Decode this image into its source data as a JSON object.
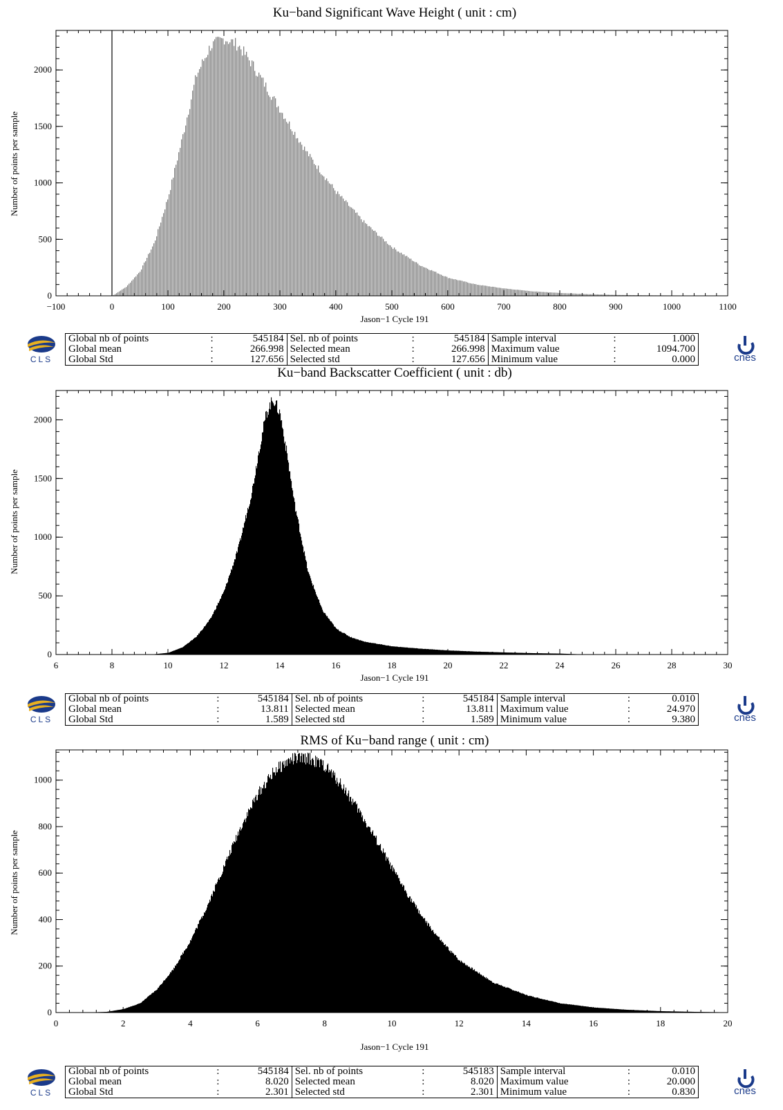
{
  "panels": [
    {
      "title": "Ku−band Significant Wave Height  ( unit : cm)",
      "xlabel": "Jason−1 Cycle 191",
      "ylabel": "Number of points per sample",
      "stats": {
        "global_nb_label": "Global nb of points",
        "global_nb": "545184",
        "global_mean_label": "Global mean",
        "global_mean": "266.998",
        "global_std_label": "Global Std",
        "global_std": "127.656",
        "sel_nb_label": "Sel. nb of points",
        "sel_nb": "545184",
        "sel_mean_label": "Selected mean",
        "sel_mean": "266.998",
        "sel_std_label": "Selected std",
        "sel_std": "127.656",
        "interval_label": "Sample interval",
        "interval": "1.000",
        "max_label": "Maximum value",
        "max": "1094.700",
        "min_label": "Minimum value",
        "min": "0.000"
      }
    },
    {
      "title": "Ku−band Backscatter Coefficient  ( unit : db)",
      "xlabel": "Jason−1 Cycle 191",
      "ylabel": "Number of points per sample",
      "stats": {
        "global_nb_label": "Global nb of points",
        "global_nb": "545184",
        "global_mean_label": "Global mean",
        "global_mean": "13.811",
        "global_std_label": "Global Std",
        "global_std": "1.589",
        "sel_nb_label": "Sel. nb of points",
        "sel_nb": "545184",
        "sel_mean_label": "Selected mean",
        "sel_mean": "13.811",
        "sel_std_label": "Selected std",
        "sel_std": "1.589",
        "interval_label": "Sample interval",
        "interval": "0.010",
        "max_label": "Maximum value",
        "max": "24.970",
        "min_label": "Minimum value",
        "min": "9.380"
      }
    },
    {
      "title": "RMS of Ku−band range  ( unit : cm)",
      "xlabel": "Jason−1 Cycle 191",
      "ylabel": "Number of points per sample",
      "stats": {
        "global_nb_label": "Global nb of points",
        "global_nb": "545184",
        "global_mean_label": "Global mean",
        "global_mean": "8.020",
        "global_std_label": "Global Std",
        "global_std": "2.301",
        "sel_nb_label": "Sel. nb of points",
        "sel_nb": "545183",
        "sel_mean_label": "Selected mean",
        "sel_mean": "8.020",
        "sel_std_label": "Selected std",
        "sel_std": "2.301",
        "interval_label": "Sample interval",
        "interval": "0.010",
        "max_label": "Maximum value",
        "max": "20.000",
        "min_label": "Minimum value",
        "min": "0.830"
      }
    }
  ],
  "logos": {
    "left_text": "CLS",
    "right_text": "cnes"
  },
  "colors": {
    "ink": "#000000",
    "bar_gray": "#808080",
    "cls_blue": "#1a3a8a",
    "cls_gold": "#e8b020",
    "cnes_blue": "#1a3a8a"
  },
  "chart_data": [
    {
      "type": "bar",
      "title": "Ku−band Significant Wave Height  ( unit : cm)",
      "xlabel": "Jason−1 Cycle 191",
      "ylabel": "Number of points per sample",
      "xlim": [
        -100,
        1100
      ],
      "ylim": [
        0,
        2350
      ],
      "xticks": [
        -100,
        0,
        100,
        200,
        300,
        400,
        500,
        600,
        700,
        800,
        900,
        1000,
        1100
      ],
      "xtick_labels": [
        "−100",
        "0",
        "100",
        "200",
        "300",
        "400",
        "500",
        "600",
        "700",
        "800",
        "900",
        "1000",
        "1100"
      ],
      "yticks": [
        0,
        500,
        1000,
        1500,
        2000
      ],
      "ytick_labels": [
        "0",
        "500",
        "1000",
        "1500",
        "2000"
      ],
      "grid": false,
      "vline_at": 0,
      "x": [
        0,
        25,
        50,
        75,
        100,
        125,
        150,
        175,
        200,
        225,
        250,
        300,
        350,
        400,
        450,
        500,
        550,
        600,
        650,
        700,
        750,
        800,
        850,
        900,
        950,
        1000,
        1050,
        1095
      ],
      "values": [
        0,
        80,
        220,
        470,
        880,
        1400,
        1950,
        2210,
        2280,
        2220,
        2050,
        1650,
        1250,
        920,
        650,
        430,
        270,
        160,
        100,
        65,
        40,
        25,
        15,
        8,
        5,
        3,
        2,
        0
      ]
    },
    {
      "type": "bar",
      "title": "Ku−band Backscatter Coefficient  ( unit : db)",
      "xlabel": "Jason−1 Cycle 191",
      "ylabel": "Number of points per sample",
      "xlim": [
        6,
        30
      ],
      "ylim": [
        0,
        2250
      ],
      "xticks": [
        6,
        8,
        10,
        12,
        14,
        16,
        18,
        20,
        22,
        24,
        26,
        28,
        30
      ],
      "xtick_labels": [
        "6",
        "8",
        "10",
        "12",
        "14",
        "16",
        "18",
        "20",
        "22",
        "24",
        "26",
        "28",
        "30"
      ],
      "yticks": [
        0,
        500,
        1000,
        1500,
        2000
      ],
      "ytick_labels": [
        "0",
        "500",
        "1000",
        "1500",
        "2000"
      ],
      "grid": false,
      "x": [
        9.38,
        10,
        10.5,
        11,
        11.5,
        12,
        12.5,
        13,
        13.25,
        13.5,
        13.75,
        14,
        14.25,
        14.5,
        15,
        15.5,
        16,
        16.5,
        17,
        18,
        19,
        20,
        21,
        22,
        23,
        24,
        24.97
      ],
      "values": [
        0,
        15,
        60,
        150,
        300,
        540,
        900,
        1400,
        1750,
        2050,
        2180,
        2050,
        1700,
        1300,
        700,
        380,
        220,
        150,
        110,
        70,
        50,
        35,
        25,
        18,
        12,
        8,
        0
      ]
    },
    {
      "type": "bar",
      "title": "RMS of Ku−band range  ( unit : cm)",
      "xlabel": "Jason−1 Cycle 191",
      "ylabel": "Number of points per sample",
      "xlim": [
        0,
        20
      ],
      "ylim": [
        0,
        1130
      ],
      "xticks": [
        0,
        2,
        4,
        6,
        8,
        10,
        12,
        14,
        16,
        18,
        20
      ],
      "xtick_labels": [
        "0",
        "2",
        "4",
        "6",
        "8",
        "10",
        "12",
        "14",
        "16",
        "18",
        "20"
      ],
      "yticks": [
        0,
        200,
        400,
        600,
        800,
        1000
      ],
      "ytick_labels": [
        "0",
        "200",
        "400",
        "600",
        "800",
        "1000"
      ],
      "grid": false,
      "x": [
        0.83,
        1.5,
        2,
        2.5,
        3,
        3.5,
        4,
        4.5,
        5,
        5.5,
        6,
        6.5,
        7,
        7.5,
        8,
        8.5,
        9,
        9.5,
        10,
        10.5,
        11,
        11.5,
        12,
        13,
        14,
        15,
        16,
        17,
        18,
        19,
        20
      ],
      "values": [
        0,
        3,
        15,
        40,
        100,
        190,
        310,
        460,
        630,
        800,
        940,
        1040,
        1090,
        1095,
        1060,
        980,
        870,
        750,
        620,
        500,
        390,
        300,
        225,
        130,
        75,
        40,
        22,
        12,
        6,
        3,
        1
      ]
    }
  ]
}
